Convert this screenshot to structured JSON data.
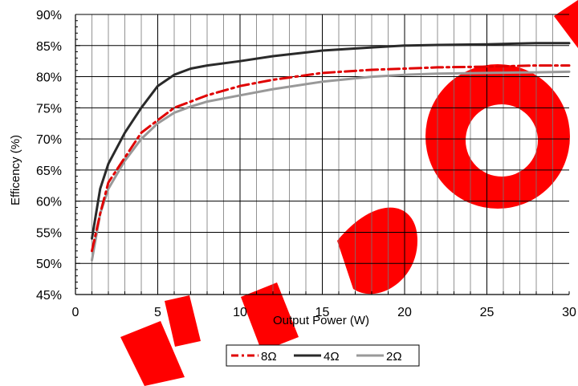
{
  "chart_data": {
    "type": "line",
    "title": "",
    "xlabel": "Output Power (W)",
    "ylabel": "Efficency (%)",
    "xlim": [
      0,
      30
    ],
    "ylim": [
      45,
      90
    ],
    "x_ticks": [
      {
        "value": 0,
        "label": "0"
      },
      {
        "value": 5,
        "label": "5"
      },
      {
        "value": 10,
        "label": "10"
      },
      {
        "value": 15,
        "label": "15"
      },
      {
        "value": 20,
        "label": "20"
      },
      {
        "value": 25,
        "label": "25"
      },
      {
        "value": 30,
        "label": "30"
      }
    ],
    "y_ticks": [
      {
        "value": 45,
        "label": "45%"
      },
      {
        "value": 50,
        "label": "50%"
      },
      {
        "value": 55,
        "label": "55%"
      },
      {
        "value": 60,
        "label": "60%"
      },
      {
        "value": 65,
        "label": "65%"
      },
      {
        "value": 70,
        "label": "70%"
      },
      {
        "value": 75,
        "label": "75%"
      },
      {
        "value": 80,
        "label": "80%"
      },
      {
        "value": 85,
        "label": "85%"
      },
      {
        "value": 90,
        "label": "90%"
      }
    ],
    "grid": true,
    "minor_x_step": 1,
    "legend_position": "bottom-center",
    "series": [
      {
        "name": "8Ω",
        "color": "#e00000",
        "style": "dash-dot",
        "x": [
          1,
          1.5,
          2,
          3,
          4,
          5,
          6,
          7,
          8,
          10,
          12,
          15,
          18,
          20,
          22,
          25,
          28,
          30
        ],
        "y": [
          52,
          58,
          63,
          67,
          71,
          73,
          75,
          76,
          77,
          78.5,
          79.5,
          80.6,
          81.1,
          81.3,
          81.5,
          81.6,
          81.8,
          81.8
        ]
      },
      {
        "name": "4Ω",
        "color": "#2a2a2a",
        "style": "solid",
        "x": [
          1,
          1.5,
          2,
          3,
          4,
          5,
          6,
          7,
          8,
          10,
          12,
          15,
          18,
          20,
          22,
          25,
          28,
          30
        ],
        "y": [
          54,
          62,
          66,
          71,
          75,
          78.5,
          80.3,
          81.3,
          81.8,
          82.5,
          83.3,
          84.2,
          84.7,
          85,
          85.1,
          85.2,
          85.4,
          85.4
        ]
      },
      {
        "name": "2Ω",
        "color": "#999999",
        "style": "solid",
        "x": [
          1,
          1.5,
          2,
          3,
          4,
          5,
          6,
          7,
          8,
          10,
          12,
          15,
          18,
          20,
          22,
          25,
          28,
          30
        ],
        "y": [
          50.5,
          58,
          62,
          66.5,
          70,
          72.5,
          74.2,
          75.2,
          76,
          77,
          78,
          79.2,
          80,
          80.3,
          80.5,
          80.6,
          80.7,
          80.8
        ]
      }
    ],
    "watermark_color": "#ff0000"
  }
}
